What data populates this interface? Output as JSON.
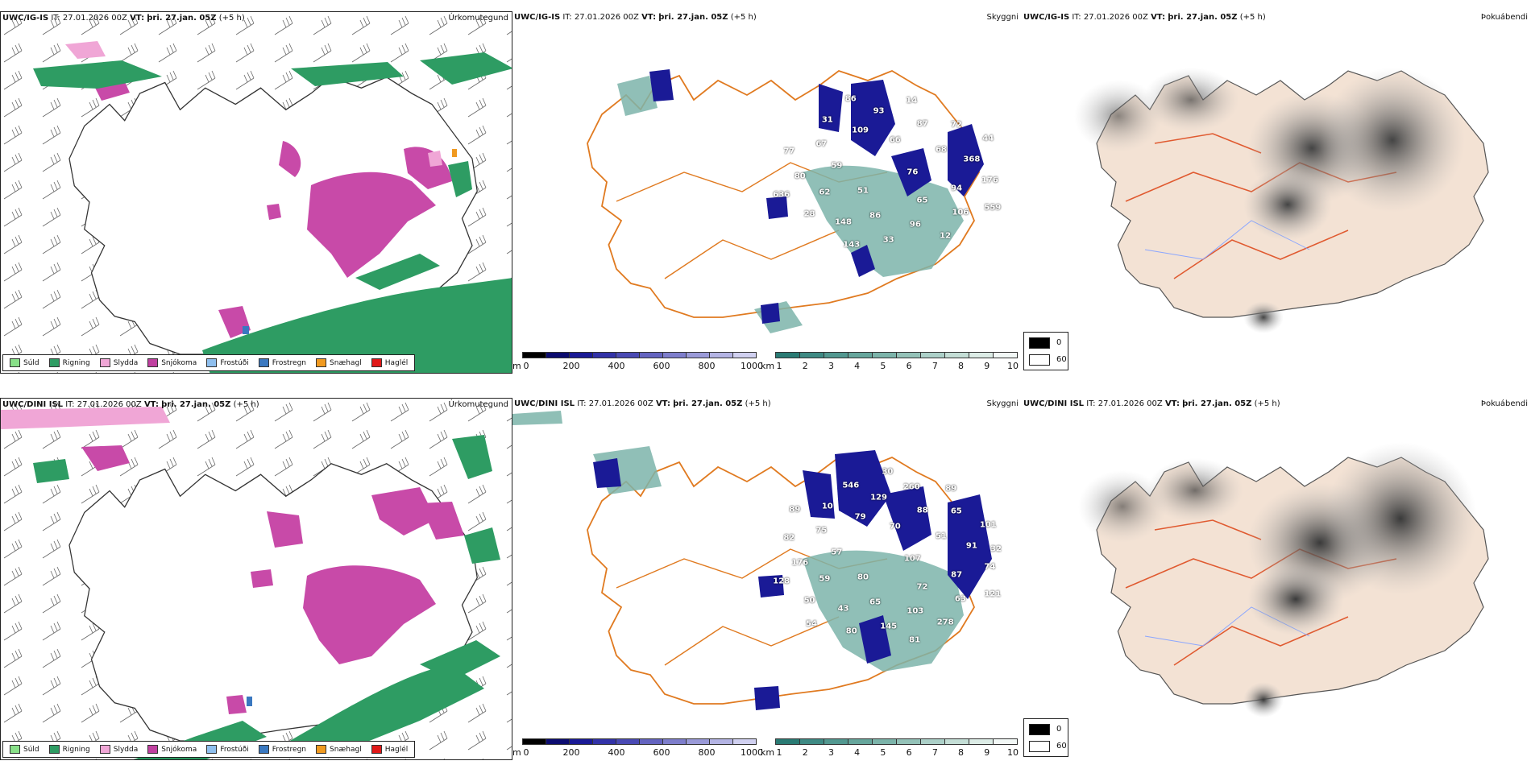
{
  "rows": [
    {
      "header": {
        "model": "UWC/IG-IS",
        "it_label": "IT:",
        "it_value": "27.01.2026 00Z",
        "vt_label": "VT:",
        "vt_value": "þri. 27.jan. 05Z",
        "offset": "(+5 h)"
      },
      "peak_labels": [
        "76",
        "51",
        "66",
        "65",
        "59",
        "68",
        "86",
        "109",
        "94",
        "62",
        "87",
        "96",
        "67",
        "368",
        "148",
        "93",
        "106",
        "80",
        "72",
        "33",
        "31",
        "176",
        "28",
        "14",
        "12",
        "77",
        "44",
        "143",
        "86",
        "559",
        "636"
      ]
    },
    {
      "header": {
        "model": "UWC/DINI ISL",
        "it_label": "IT:",
        "it_value": "27.01.2026 00Z",
        "vt_label": "VT:",
        "vt_value": "þri. 27.jan. 05Z",
        "offset": "(+5 h)"
      },
      "peak_labels": [
        "107",
        "80",
        "70",
        "72",
        "57",
        "51",
        "65",
        "79",
        "87",
        "59",
        "88",
        "103",
        "75",
        "91",
        "43",
        "129",
        "63",
        "176",
        "65",
        "145",
        "10",
        "74",
        "50",
        "260",
        "278",
        "82",
        "101",
        "80",
        "546",
        "121",
        "128",
        "89",
        "81",
        "89",
        "32",
        "54",
        "30"
      ]
    }
  ],
  "titles": {
    "precip_type": "Úrkomutegund",
    "cloud": "Skyggni",
    "fog": "Þokuábendi"
  },
  "legend": [
    {
      "label": "Súld",
      "color": "#88e088"
    },
    {
      "label": "Rigning",
      "color": "#2e9c63"
    },
    {
      "label": "Slydda",
      "color": "#f0a6d6"
    },
    {
      "label": "Snjókoma",
      "color": "#c040a0"
    },
    {
      "label": "Frostúði",
      "color": "#8fbfee"
    },
    {
      "label": "Frostregn",
      "color": "#3a78c0"
    },
    {
      "label": "Snæhagl",
      "color": "#f09a20"
    },
    {
      "label": "Haglél",
      "color": "#e01818"
    }
  ],
  "cloudbase_scale": {
    "unit": "m",
    "ticks": [
      "0",
      "200",
      "400",
      "600",
      "800",
      "1000"
    ],
    "colors": [
      "#000000",
      "#0c0c70",
      "#1a1a96",
      "#3232a8",
      "#4a4ab4",
      "#6464c0",
      "#7e7ecc",
      "#9a9ad8",
      "#b4b4e4",
      "#d0d0f0"
    ]
  },
  "visibility_scale": {
    "unit": "km",
    "ticks": [
      "1",
      "2",
      "3",
      "4",
      "5",
      "6",
      "7",
      "8",
      "9",
      "10"
    ],
    "colors": [
      "#2a7b74",
      "#3e8a84",
      "#529890",
      "#66a69c",
      "#7cb4aa",
      "#94c2b8",
      "#acd0c8",
      "#c4ded6",
      "#dcece6",
      "#f2f8f6"
    ]
  },
  "sky_legend": {
    "black_value": "0",
    "white_value": "60"
  }
}
